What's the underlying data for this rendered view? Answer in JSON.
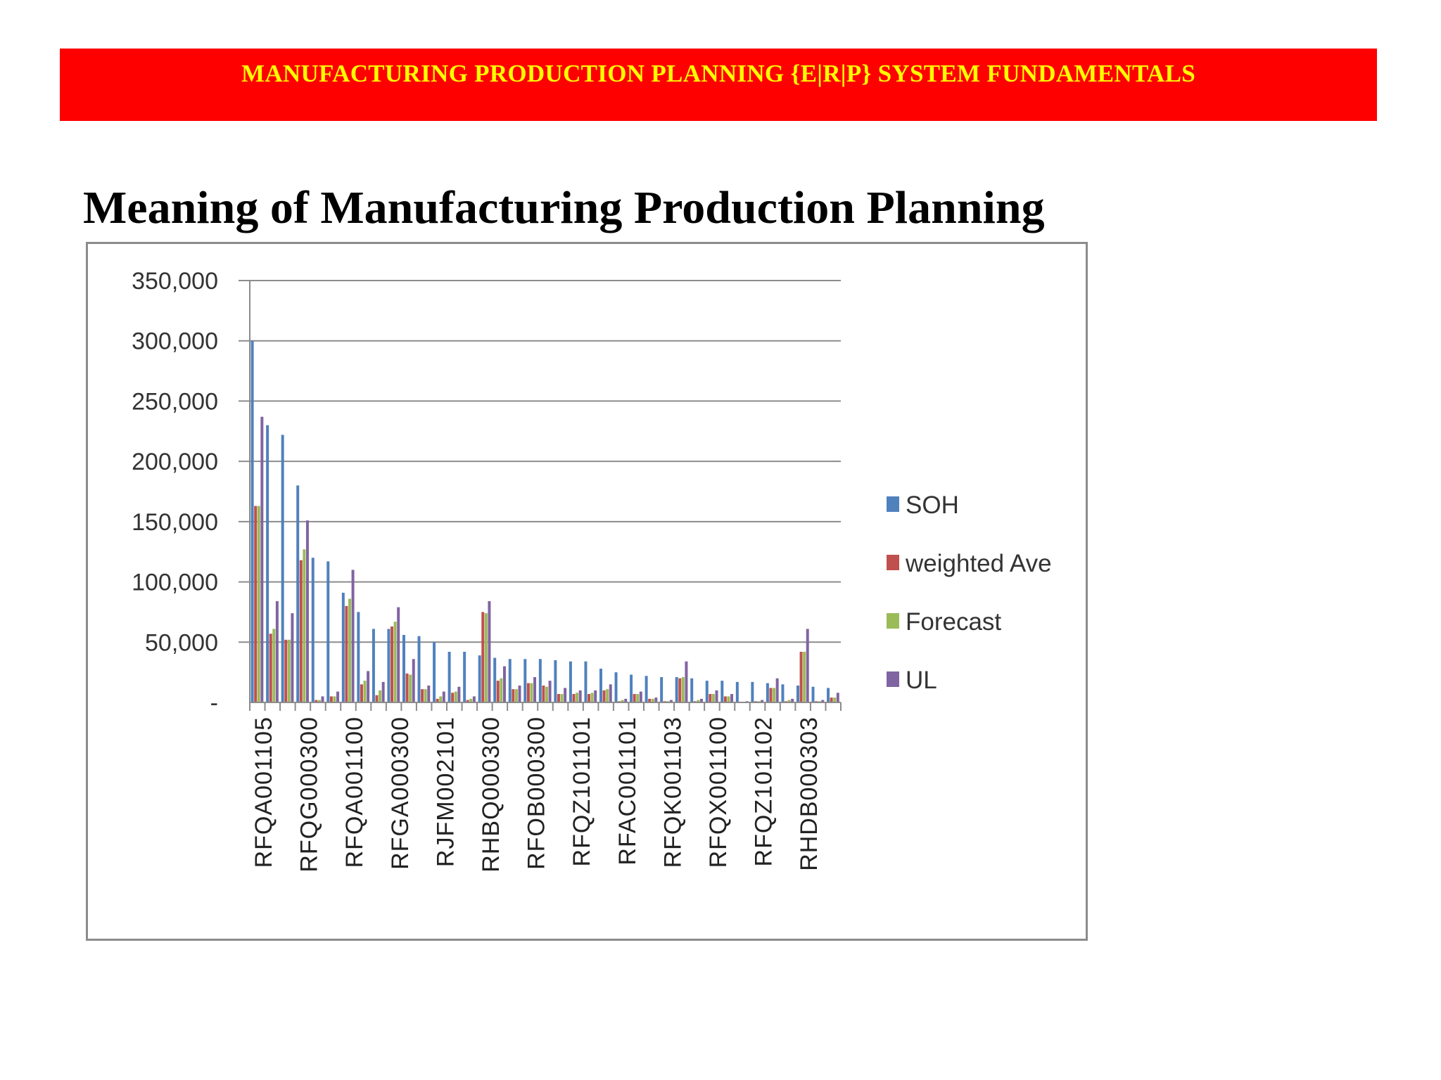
{
  "header": {
    "banner_text": "MANUFACTURING PRODUCTION PLANNING {E|R|P} SYSTEM FUNDAMENTALS"
  },
  "slide": {
    "title": "Meaning of Manufacturing Production Planning"
  },
  "colors": {
    "banner_bg": "#ff0000",
    "banner_text": "#ffff00",
    "gridline": "#8c8c8c"
  },
  "chart_data": {
    "type": "bar",
    "ylim": [
      0,
      350000
    ],
    "yticks": [
      0,
      50000,
      100000,
      150000,
      200000,
      250000,
      300000,
      350000
    ],
    "ytick_labels": [
      "-",
      "50,000",
      "100,000",
      "150,000",
      "200,000",
      "250,000",
      "300,000",
      "350,000"
    ],
    "grid": true,
    "legend_position": "right",
    "shown_category_labels": [
      "RFQA001105",
      "RFQG000300",
      "RFQA001100",
      "RFGA000300",
      "RJFM002101",
      "RHBQ000300",
      "RFOB000300",
      "RFQZ101101",
      "RFAC001101",
      "RFQK001103",
      "RFQX001100",
      "RFQZ101102",
      "RHDB000303"
    ],
    "series": [
      {
        "name": "SOH",
        "color": "#4f81bd",
        "values": [
          300000,
          230000,
          222000,
          180000,
          120000,
          117000,
          91000,
          75000,
          61000,
          61000,
          56000,
          55000,
          50000,
          42000,
          42000,
          39000,
          37000,
          36000,
          36000,
          36000,
          35000,
          34000,
          34000,
          28000,
          25000,
          23000,
          22000,
          21000,
          21000,
          20000,
          18000,
          18000,
          17000,
          17000,
          16000,
          15000,
          14000,
          13000,
          12000
        ]
      },
      {
        "name": "weighted Ave",
        "color": "#c0504d",
        "values": [
          163000,
          57000,
          52000,
          118000,
          2000,
          5000,
          80000,
          15000,
          6000,
          63000,
          24000,
          11000,
          3000,
          8000,
          2000,
          75000,
          18000,
          11000,
          16000,
          14000,
          7000,
          7000,
          7000,
          10000,
          1000,
          7000,
          3000,
          1000,
          20000,
          1000,
          7000,
          5000,
          0,
          1000,
          12000,
          1000,
          42000,
          1000,
          4000
        ]
      },
      {
        "name": "Forecast",
        "color": "#9bbb59",
        "values": [
          163000,
          61000,
          52000,
          127000,
          2000,
          5000,
          86000,
          18000,
          10000,
          67000,
          23000,
          11000,
          5000,
          9000,
          3000,
          74000,
          20000,
          11000,
          16000,
          13000,
          7000,
          8000,
          8000,
          11000,
          2000,
          7000,
          3000,
          1000,
          21000,
          2000,
          7000,
          5000,
          0,
          1000,
          12000,
          2000,
          42000,
          1000,
          4000
        ]
      },
      {
        "name": "UL",
        "color": "#8064a2",
        "values": [
          237000,
          84000,
          74000,
          151000,
          5000,
          9000,
          110000,
          26000,
          17000,
          79000,
          36000,
          14000,
          9000,
          13000,
          5000,
          84000,
          30000,
          14000,
          21000,
          18000,
          12000,
          10000,
          10000,
          15000,
          3000,
          9000,
          4000,
          2000,
          34000,
          3000,
          10000,
          7000,
          1000,
          2000,
          20000,
          3000,
          61000,
          2000,
          8000
        ]
      }
    ]
  }
}
